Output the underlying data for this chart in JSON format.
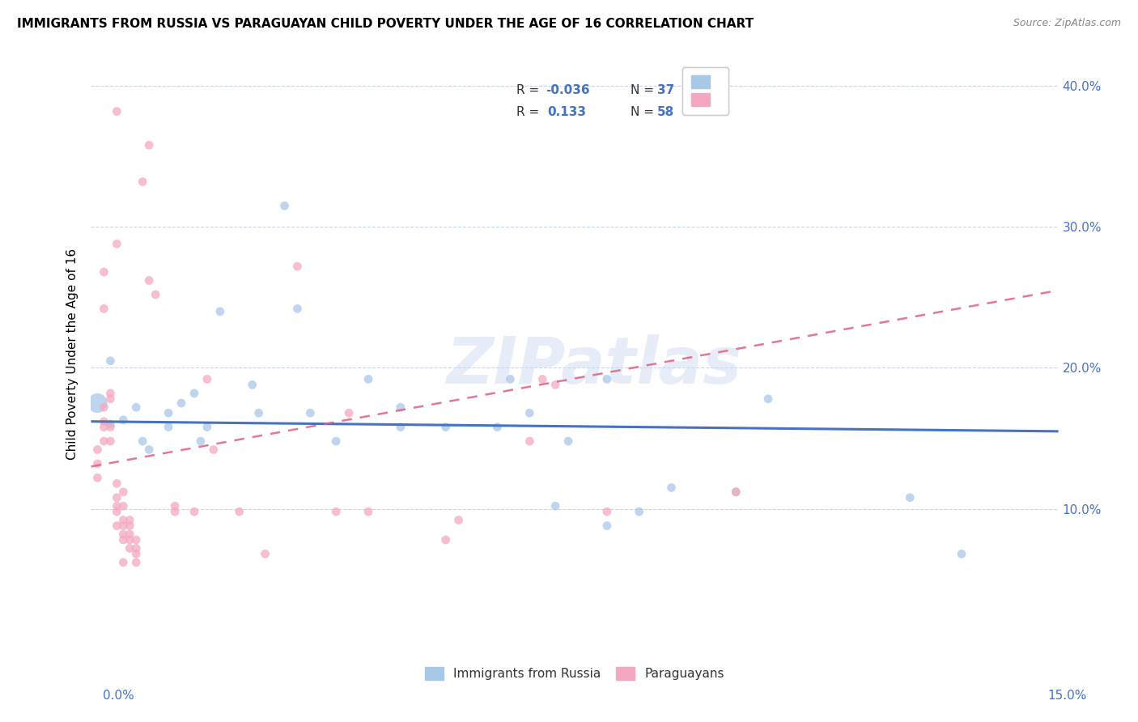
{
  "title": "IMMIGRANTS FROM RUSSIA VS PARAGUAYAN CHILD POVERTY UNDER THE AGE OF 16 CORRELATION CHART",
  "source": "Source: ZipAtlas.com",
  "ylabel": "Child Poverty Under the Age of 16",
  "x_min": 0.0,
  "x_max": 0.15,
  "y_min": 0.0,
  "y_max": 0.42,
  "x_ticks": [
    0.0,
    0.03,
    0.06,
    0.09,
    0.12,
    0.15
  ],
  "y_ticks": [
    0.0,
    0.1,
    0.2,
    0.3,
    0.4
  ],
  "legend_bottom": [
    "Immigrants from Russia",
    "Paraguayans"
  ],
  "russia_color": "#a8c8e8",
  "paraguay_color": "#f4a8c0",
  "russia_line_color": "#4472c4",
  "paraguay_line_color": "#e06080",
  "watermark": "ZIPatlas",
  "russia_R": -0.036,
  "paraguay_R": 0.133,
  "russia_N": 37,
  "paraguay_N": 58,
  "russia_line_y0": 0.162,
  "russia_line_y1": 0.155,
  "paraguay_line_y0": 0.13,
  "paraguay_line_y1": 0.255,
  "russia_points": [
    [
      0.001,
      0.175,
      300
    ],
    [
      0.003,
      0.205,
      60
    ],
    [
      0.003,
      0.16,
      60
    ],
    [
      0.005,
      0.163,
      60
    ],
    [
      0.007,
      0.172,
      60
    ],
    [
      0.008,
      0.148,
      60
    ],
    [
      0.009,
      0.142,
      60
    ],
    [
      0.012,
      0.168,
      60
    ],
    [
      0.012,
      0.158,
      60
    ],
    [
      0.014,
      0.175,
      60
    ],
    [
      0.016,
      0.182,
      60
    ],
    [
      0.017,
      0.148,
      60
    ],
    [
      0.018,
      0.158,
      60
    ],
    [
      0.02,
      0.24,
      60
    ],
    [
      0.025,
      0.188,
      60
    ],
    [
      0.026,
      0.168,
      60
    ],
    [
      0.03,
      0.315,
      60
    ],
    [
      0.032,
      0.242,
      60
    ],
    [
      0.034,
      0.168,
      60
    ],
    [
      0.038,
      0.148,
      60
    ],
    [
      0.043,
      0.192,
      60
    ],
    [
      0.048,
      0.172,
      60
    ],
    [
      0.048,
      0.158,
      60
    ],
    [
      0.055,
      0.158,
      60
    ],
    [
      0.063,
      0.158,
      60
    ],
    [
      0.065,
      0.192,
      60
    ],
    [
      0.068,
      0.168,
      60
    ],
    [
      0.072,
      0.102,
      60
    ],
    [
      0.074,
      0.148,
      60
    ],
    [
      0.08,
      0.088,
      60
    ],
    [
      0.08,
      0.192,
      60
    ],
    [
      0.085,
      0.098,
      60
    ],
    [
      0.1,
      0.112,
      60
    ],
    [
      0.105,
      0.178,
      60
    ],
    [
      0.127,
      0.108,
      60
    ],
    [
      0.135,
      0.068,
      60
    ],
    [
      0.09,
      0.115,
      60
    ]
  ],
  "paraguay_points": [
    [
      0.001,
      0.142,
      60
    ],
    [
      0.001,
      0.132,
      60
    ],
    [
      0.001,
      0.122,
      60
    ],
    [
      0.002,
      0.158,
      60
    ],
    [
      0.002,
      0.148,
      60
    ],
    [
      0.002,
      0.162,
      60
    ],
    [
      0.002,
      0.172,
      60
    ],
    [
      0.002,
      0.242,
      60
    ],
    [
      0.002,
      0.268,
      60
    ],
    [
      0.003,
      0.148,
      60
    ],
    [
      0.003,
      0.158,
      60
    ],
    [
      0.003,
      0.178,
      60
    ],
    [
      0.003,
      0.182,
      60
    ],
    [
      0.004,
      0.088,
      60
    ],
    [
      0.004,
      0.098,
      60
    ],
    [
      0.004,
      0.102,
      60
    ],
    [
      0.004,
      0.108,
      60
    ],
    [
      0.004,
      0.118,
      60
    ],
    [
      0.004,
      0.288,
      60
    ],
    [
      0.004,
      0.382,
      60
    ],
    [
      0.005,
      0.062,
      60
    ],
    [
      0.005,
      0.078,
      60
    ],
    [
      0.005,
      0.082,
      60
    ],
    [
      0.005,
      0.088,
      60
    ],
    [
      0.005,
      0.092,
      60
    ],
    [
      0.005,
      0.102,
      60
    ],
    [
      0.005,
      0.112,
      60
    ],
    [
      0.006,
      0.072,
      60
    ],
    [
      0.006,
      0.078,
      60
    ],
    [
      0.006,
      0.082,
      60
    ],
    [
      0.006,
      0.088,
      60
    ],
    [
      0.006,
      0.092,
      60
    ],
    [
      0.007,
      0.062,
      60
    ],
    [
      0.007,
      0.068,
      60
    ],
    [
      0.007,
      0.072,
      60
    ],
    [
      0.007,
      0.078,
      60
    ],
    [
      0.008,
      0.332,
      60
    ],
    [
      0.009,
      0.262,
      60
    ],
    [
      0.009,
      0.358,
      60
    ],
    [
      0.01,
      0.252,
      60
    ],
    [
      0.013,
      0.098,
      60
    ],
    [
      0.013,
      0.102,
      60
    ],
    [
      0.016,
      0.098,
      60
    ],
    [
      0.018,
      0.192,
      60
    ],
    [
      0.019,
      0.142,
      60
    ],
    [
      0.023,
      0.098,
      60
    ],
    [
      0.027,
      0.068,
      60
    ],
    [
      0.032,
      0.272,
      60
    ],
    [
      0.038,
      0.098,
      60
    ],
    [
      0.04,
      0.168,
      60
    ],
    [
      0.043,
      0.098,
      60
    ],
    [
      0.055,
      0.078,
      60
    ],
    [
      0.057,
      0.092,
      60
    ],
    [
      0.068,
      0.148,
      60
    ],
    [
      0.07,
      0.192,
      60
    ],
    [
      0.072,
      0.188,
      60
    ],
    [
      0.08,
      0.098,
      60
    ],
    [
      0.1,
      0.112,
      60
    ]
  ]
}
